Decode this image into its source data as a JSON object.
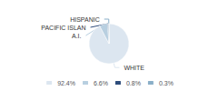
{
  "chart_data": {
    "type": "pie",
    "categories": [
      "WHITE",
      "A.I.",
      "PACIFIC ISLAN",
      "HISPANIC"
    ],
    "values": [
      92.4,
      6.6,
      0.8,
      0.3
    ],
    "value_labels": [
      "92.4%",
      "6.6%",
      "0.8%",
      "0.3%"
    ],
    "colors": [
      "#dce6f0",
      "#b8cfe0",
      "#2e4d7b",
      "#8aafc8"
    ],
    "legend": "bottom"
  }
}
